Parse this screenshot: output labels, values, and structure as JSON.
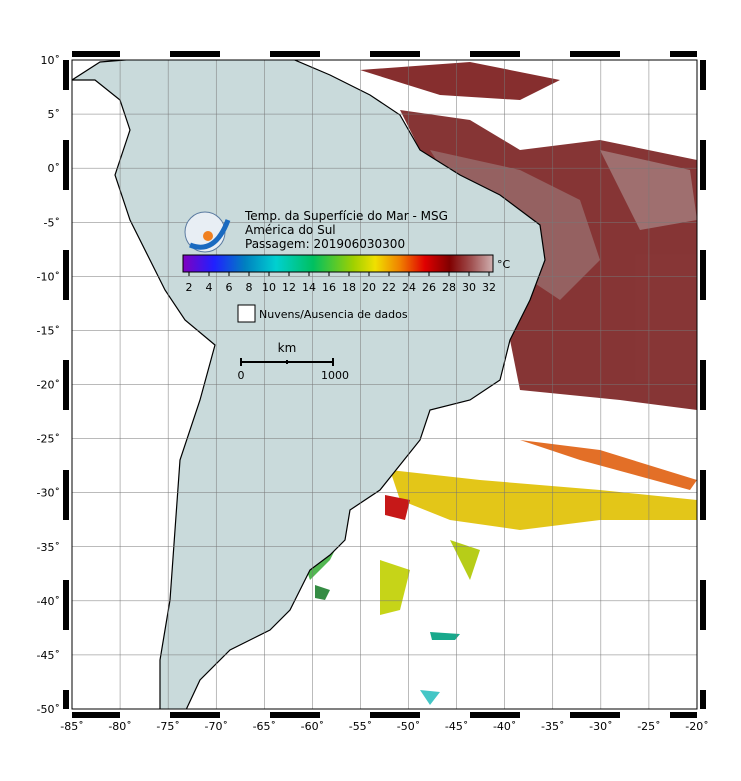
{
  "map": {
    "title_lines": [
      "Temp. da Superfície do Mar - MSG",
      "América do Sul",
      "Passagem: 201906030300"
    ],
    "colorbar": {
      "ticks": [
        2,
        4,
        6,
        8,
        10,
        12,
        14,
        16,
        18,
        20,
        22,
        24,
        26,
        28,
        30,
        32
      ],
      "unit": "°C",
      "clim": [
        1.4,
        32.4
      ]
    },
    "legend": "Nuvens/Ausencia de dados",
    "scalebar": {
      "unit": "km",
      "start": "0",
      "end": "1000"
    },
    "lonlim": [
      -85,
      -20
    ],
    "latlim": [
      -50,
      10
    ],
    "xticks": [
      {
        "value": -85,
        "label": "-85˚"
      },
      {
        "value": -80,
        "label": "-80˚"
      },
      {
        "value": -75,
        "label": "-75˚"
      },
      {
        "value": -70,
        "label": "-70˚"
      },
      {
        "value": -65,
        "label": "-65˚"
      },
      {
        "value": -60,
        "label": "-60˚"
      },
      {
        "value": -55,
        "label": "-55˚"
      },
      {
        "value": -50,
        "label": "-50˚"
      },
      {
        "value": -45,
        "label": "-45˚"
      },
      {
        "value": -40,
        "label": "-40˚"
      },
      {
        "value": -35,
        "label": "-35˚"
      },
      {
        "value": -30,
        "label": "-30˚"
      },
      {
        "value": -25,
        "label": "-25˚"
      },
      {
        "value": -20,
        "label": "-20˚"
      }
    ],
    "yticks": [
      {
        "value": 10,
        "label": "10˚"
      },
      {
        "value": 5,
        "label": "5˚"
      },
      {
        "value": 0,
        "label": "0˚"
      },
      {
        "value": -5,
        "label": "-5˚"
      },
      {
        "value": -10,
        "label": "-10˚"
      },
      {
        "value": -15,
        "label": "-15˚"
      },
      {
        "value": -20,
        "label": "-20˚"
      },
      {
        "value": -25,
        "label": "-25˚"
      },
      {
        "value": -30,
        "label": "-30˚"
      },
      {
        "value": -35,
        "label": "-35˚"
      },
      {
        "value": -40,
        "label": "-40˚"
      },
      {
        "value": -45,
        "label": "-45˚"
      },
      {
        "value": -50,
        "label": "-50˚"
      }
    ]
  }
}
